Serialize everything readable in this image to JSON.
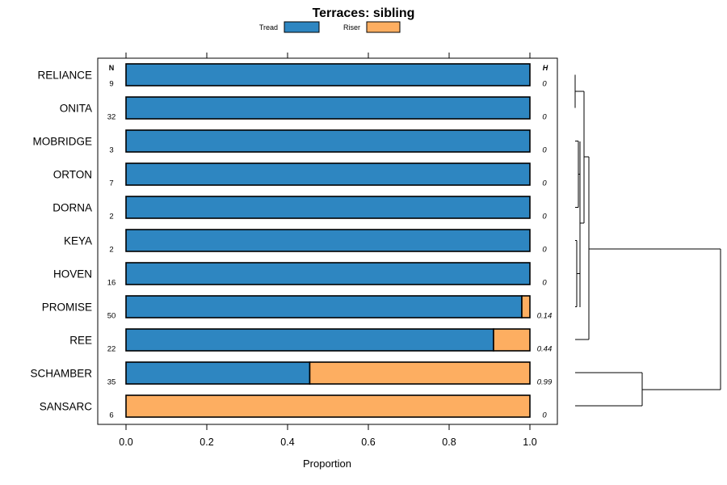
{
  "chart_data": {
    "type": "bar",
    "stacked": true,
    "orientation": "horizontal",
    "title": "Terraces: sibling",
    "xlabel": "Proportion",
    "ylabel": "",
    "xlim": [
      0,
      1
    ],
    "x_ticks": [
      "0.0",
      "0.2",
      "0.4",
      "0.6",
      "0.8",
      "1.0"
    ],
    "x_tick_values": [
      0,
      0.2,
      0.4,
      0.6,
      0.8,
      1.0
    ],
    "categories": [
      "RELIANCE",
      "ONITA",
      "MOBRIDGE",
      "ORTON",
      "DORNA",
      "KEYA",
      "HOVEN",
      "PROMISE",
      "REE",
      "SCHAMBER",
      "SANSARC"
    ],
    "series": [
      {
        "name": "Tread",
        "color": "#2E86C1",
        "values": [
          1,
          1,
          1,
          1,
          1,
          1,
          1,
          0.98,
          0.91,
          0.455,
          0
        ]
      },
      {
        "name": "Riser",
        "color": "#FDAE61",
        "values": [
          0,
          0,
          0,
          0,
          0,
          0,
          0,
          0.02,
          0.09,
          0.545,
          1
        ]
      }
    ],
    "n_header": "N",
    "h_header": "H",
    "n_values": [
      "9",
      "32",
      "3",
      "7",
      "2",
      "2",
      "16",
      "50",
      "22",
      "35",
      "6"
    ],
    "h_values": [
      "0",
      "0",
      "0",
      "0",
      "0",
      "0",
      "0",
      "0.14",
      "0.44",
      "0.99",
      "0"
    ],
    "legend": [
      "Tread",
      "Riser"
    ],
    "legend_position": "top",
    "dendrogram": true
  }
}
